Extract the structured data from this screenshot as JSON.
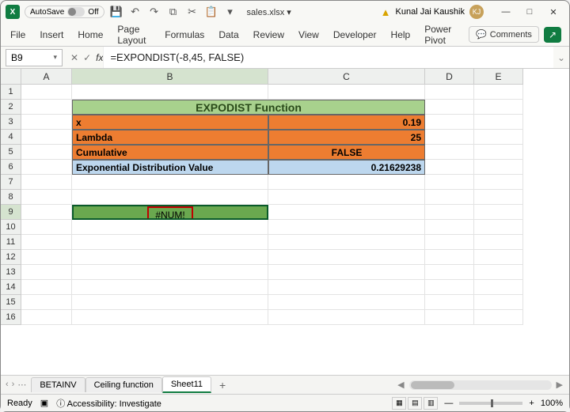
{
  "titlebar": {
    "autosave_label": "AutoSave",
    "autosave_state": "Off",
    "filename": "sales.xlsx ▾",
    "user_name": "Kunal Jai Kaushik",
    "user_initials": "KJ"
  },
  "ribbon": {
    "tabs": [
      "File",
      "Insert",
      "Home",
      "Page Layout",
      "Formulas",
      "Data",
      "Review",
      "View",
      "Developer",
      "Help",
      "Power Pivot"
    ],
    "comments": "Comments"
  },
  "formula": {
    "namebox": "B9",
    "value": "=EXPONDIST(-8,45, FALSE)"
  },
  "columns": [
    "A",
    "B",
    "C",
    "D",
    "E"
  ],
  "rows_visible": 16,
  "table": {
    "title": "EXPODIST Function",
    "rows": [
      {
        "label": "x",
        "value": "0.19",
        "style": "orange",
        "align": "right"
      },
      {
        "label": "Lambda",
        "value": "25",
        "style": "orange",
        "align": "right"
      },
      {
        "label": "Cumulative",
        "value": "FALSE",
        "style": "orange",
        "align": "center"
      },
      {
        "label": "Exponential Distribution Value",
        "value": "0.21629238",
        "style": "blue",
        "align": "right"
      }
    ]
  },
  "error_cell": "#NUM!",
  "sheets": {
    "tabs": [
      "BETAINV",
      "Ceiling function",
      "Sheet11"
    ],
    "active": "Sheet11"
  },
  "status": {
    "ready": "Ready",
    "accessibility": "Accessibility: Investigate",
    "zoom": "100%"
  },
  "colors": {
    "table_header": "#a8d18d",
    "orange": "#ed7d31",
    "blue": "#bdd7ee",
    "selected_fill": "#6aa84f",
    "error_border": "#c00000",
    "excel_green": "#107c41"
  }
}
